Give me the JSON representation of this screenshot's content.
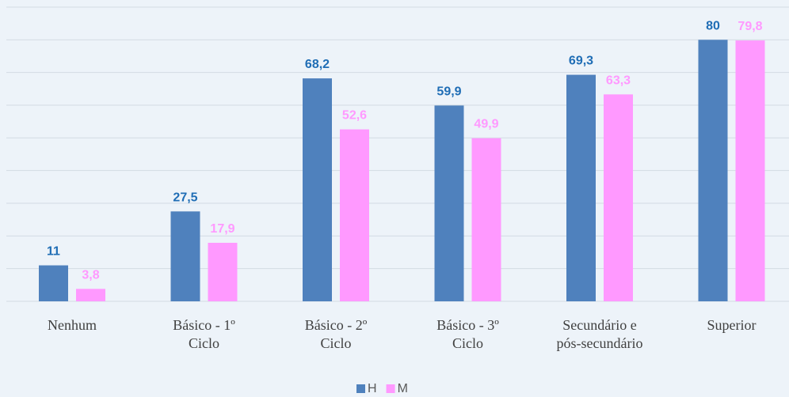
{
  "chart_data": {
    "type": "bar",
    "categories": [
      "Nenhum",
      "Básico - 1º\nCiclo",
      "Básico - 2º\nCiclo",
      "Básico - 3º\nCiclo",
      "Secundário e\npós-secundário",
      "Superior"
    ],
    "series": [
      {
        "name": "H",
        "color": "#4f81bd",
        "label_color": "#1f6db5",
        "values": [
          11,
          27.5,
          68.2,
          59.9,
          69.3,
          80
        ],
        "value_labels": [
          "11",
          "27,5",
          "68,2",
          "59,9",
          "69,3",
          "80"
        ]
      },
      {
        "name": "M",
        "color": "#ff99ff",
        "label_color": "#ff99ff",
        "values": [
          3.8,
          17.9,
          52.6,
          49.9,
          63.3,
          79.8
        ],
        "value_labels": [
          "3,8",
          "17,9",
          "52,6",
          "49,9",
          "63,3",
          "79,8"
        ]
      }
    ],
    "ylim": [
      0,
      90
    ],
    "yticks": [
      0,
      10,
      20,
      30,
      40,
      50,
      60,
      70,
      80,
      90
    ],
    "grid": true
  }
}
